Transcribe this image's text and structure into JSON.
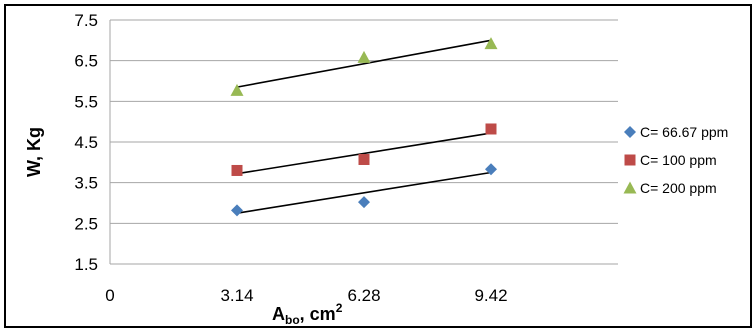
{
  "chart_data": {
    "type": "scatter",
    "title": "",
    "xlabel": {
      "main": "A",
      "sub": "bo",
      "rest": ",  cm",
      "sup": "2"
    },
    "ylabel": "W,  Kg",
    "xlim": [
      0,
      12.56
    ],
    "ylim": [
      1.5,
      7.5
    ],
    "x_ticks": [
      {
        "value": 0,
        "label": "0"
      },
      {
        "value": 3.14,
        "label": "3.14"
      },
      {
        "value": 6.28,
        "label": "6.28"
      },
      {
        "value": 9.42,
        "label": "9.42"
      }
    ],
    "y_ticks": [
      "1.5",
      "2.5",
      "3.5",
      "4.5",
      "5.5",
      "6.5",
      "7.5"
    ],
    "grid": "horizontal",
    "legend_position": "right",
    "series": [
      {
        "name": "C= 66.67 ppm",
        "marker": "diamond",
        "color": "#4a7ebb",
        "x": [
          3.14,
          6.28,
          9.42
        ],
        "y": [
          2.82,
          3.02,
          3.83
        ],
        "trendline": [
          [
            3.14,
            2.75
          ],
          [
            9.42,
            3.75
          ]
        ]
      },
      {
        "name": "C= 100 ppm",
        "marker": "square",
        "color": "#be4b48",
        "x": [
          3.14,
          6.28,
          9.42
        ],
        "y": [
          3.8,
          4.07,
          4.82
        ],
        "trendline": [
          [
            3.14,
            3.72
          ],
          [
            9.42,
            4.72
          ]
        ]
      },
      {
        "name": "C= 200 ppm",
        "marker": "triangle",
        "color": "#98b954",
        "x": [
          3.14,
          6.28,
          9.42
        ],
        "y": [
          5.77,
          6.58,
          6.92
        ],
        "trendline": [
          [
            3.14,
            5.85
          ],
          [
            9.42,
            7.0
          ]
        ]
      }
    ]
  }
}
